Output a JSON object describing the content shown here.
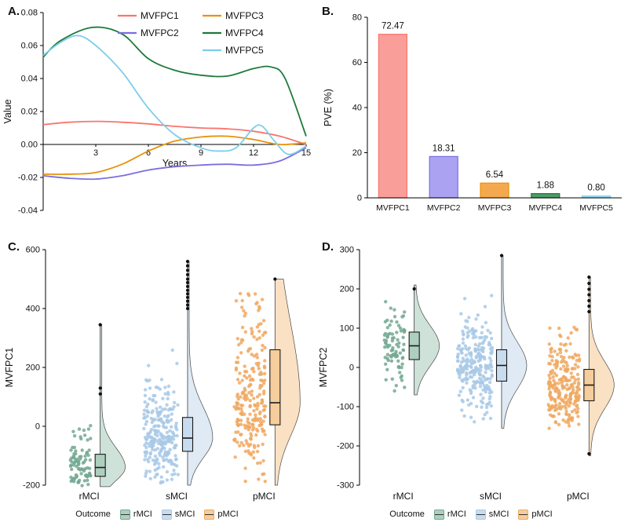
{
  "panels": {
    "a": "A.",
    "b": "B.",
    "c": "C.",
    "d": "D."
  },
  "chart_data": [
    {
      "id": "A",
      "type": "line",
      "xlabel": "Years",
      "ylabel": "Value",
      "xlim": [
        0,
        15
      ],
      "ylim": [
        -0.04,
        0.08
      ],
      "xticks": [
        3,
        6,
        9,
        12,
        15
      ],
      "yticks": [
        0.08,
        0.06,
        0.04,
        0.02,
        0.0,
        -0.02,
        -0.04
      ],
      "legend_position": "top-inside",
      "series": [
        {
          "name": "MVFPC1",
          "color": "#F8766D",
          "x": [
            0,
            1.5,
            3,
            4.5,
            6,
            7.5,
            9,
            10.5,
            12,
            13.5,
            15
          ],
          "y": [
            0.012,
            0.0135,
            0.014,
            0.0135,
            0.0125,
            0.011,
            0.01,
            0.0095,
            0.008,
            0.005,
            0.0
          ]
        },
        {
          "name": "MVFPC2",
          "color": "#7A6FE0",
          "x": [
            0,
            1.5,
            3,
            4.5,
            6,
            7.5,
            9,
            10.5,
            12,
            13.5,
            15
          ],
          "y": [
            -0.019,
            -0.0205,
            -0.021,
            -0.019,
            -0.0155,
            -0.0135,
            -0.0125,
            -0.012,
            -0.0125,
            -0.01,
            -0.002
          ]
        },
        {
          "name": "MVFPC3",
          "color": "#E8920C",
          "x": [
            0,
            1.5,
            3,
            4.5,
            6,
            7.5,
            9,
            10.5,
            12,
            13.5,
            15
          ],
          "y": [
            -0.018,
            -0.018,
            -0.017,
            -0.012,
            -0.004,
            0.002,
            0.0045,
            0.005,
            0.003,
            0.0,
            0.001
          ]
        },
        {
          "name": "MVFPC4",
          "color": "#1E7A3C",
          "x": [
            0,
            1,
            2.8,
            4.5,
            6,
            7.5,
            9,
            10.5,
            12,
            13,
            13.8,
            15
          ],
          "y": [
            0.053,
            0.063,
            0.071,
            0.067,
            0.052,
            0.045,
            0.042,
            0.0415,
            0.046,
            0.047,
            0.04,
            0.005
          ]
        },
        {
          "name": "MVFPC5",
          "color": "#7CCDEB",
          "x": [
            0,
            1,
            2,
            3,
            4.5,
            6,
            7.5,
            9,
            10,
            11,
            12,
            12.5,
            13.2,
            14,
            15
          ],
          "y": [
            0.054,
            0.062,
            0.066,
            0.06,
            0.044,
            0.022,
            0.006,
            -0.002,
            -0.004,
            -0.002,
            0.01,
            0.011,
            0.002,
            -0.006,
            -0.001
          ]
        }
      ]
    },
    {
      "id": "B",
      "type": "bar",
      "ylabel": "PVE (%)",
      "ylim": [
        0,
        80
      ],
      "yticks": [
        0,
        20,
        40,
        60,
        80
      ],
      "categories": [
        "MVFPC1",
        "MVFPC2",
        "MVFPC3",
        "MVFPC4",
        "MVFPC5"
      ],
      "values": [
        72.47,
        18.31,
        6.54,
        1.88,
        0.8
      ],
      "value_labels": [
        "72.47",
        "18.31",
        "6.54",
        "1.88",
        "0.80"
      ],
      "bar_fills": [
        "#FA9E99",
        "#ABA3F2",
        "#F5A94F",
        "#4E9B68",
        "#A6DCF2"
      ],
      "bar_strokes": [
        "#F8766D",
        "#7A6FE0",
        "#E8920C",
        "#1E7A3C",
        "#7CCDEB"
      ]
    },
    {
      "id": "C",
      "type": "raincloud",
      "ylabel": "MVFPC1",
      "ylim": [
        -200,
        600
      ],
      "yticks": [
        600,
        400,
        200,
        0,
        -200
      ],
      "categories": [
        "rMCI",
        "sMCI",
        "pMCI"
      ],
      "legend_title": "Outcome",
      "groups": [
        {
          "name": "rMCI",
          "point_color": "#74A892",
          "fill": "#AECFBF",
          "n": 85,
          "jitter_w": 26,
          "median": -140,
          "q1": -170,
          "q3": -95,
          "min": -205,
          "max": 150,
          "line_low": -205,
          "line_high": 345,
          "outliers": [
            345,
            130,
            110
          ]
        },
        {
          "name": "sMCI",
          "point_color": "#A8C9E6",
          "fill": "#C9DCEF",
          "n": 255,
          "jitter_w": 44,
          "median": -40,
          "q1": -85,
          "q3": 30,
          "min": -200,
          "max": 360,
          "line_low": -200,
          "line_high": 560,
          "outliers": [
            560,
            545,
            530,
            515,
            500,
            488,
            475,
            462,
            450,
            438,
            425,
            412,
            400
          ]
        },
        {
          "name": "pMCI",
          "point_color": "#F0A860",
          "fill": "#F6CD9C",
          "n": 235,
          "jitter_w": 40,
          "median": 80,
          "q1": 5,
          "q3": 260,
          "min": -200,
          "max": 470,
          "line_low": -200,
          "line_high": 500,
          "outliers": [
            500
          ]
        }
      ]
    },
    {
      "id": "D",
      "type": "raincloud",
      "ylabel": "MVFPC2",
      "ylim": [
        -300,
        300
      ],
      "yticks": [
        300,
        200,
        100,
        0,
        -100,
        -200,
        -300
      ],
      "categories": [
        "rMCI",
        "sMCI",
        "pMCI"
      ],
      "legend_title": "Outcome",
      "groups": [
        {
          "name": "rMCI",
          "point_color": "#74A892",
          "fill": "#AECFBF",
          "n": 85,
          "jitter_w": 26,
          "median": 55,
          "q1": 20,
          "q3": 90,
          "min": -65,
          "max": 205,
          "line_low": -70,
          "line_high": 210,
          "outliers": [
            200
          ]
        },
        {
          "name": "sMCI",
          "point_color": "#A8C9E6",
          "fill": "#C9DCEF",
          "n": 255,
          "jitter_w": 44,
          "median": 5,
          "q1": -35,
          "q3": 45,
          "min": -150,
          "max": 240,
          "line_low": -155,
          "line_high": 285,
          "outliers": [
            285
          ]
        },
        {
          "name": "pMCI",
          "point_color": "#F0A860",
          "fill": "#F6CD9C",
          "n": 235,
          "jitter_w": 40,
          "median": -45,
          "q1": -85,
          "q3": -5,
          "min": -170,
          "max": 135,
          "line_low": -225,
          "line_high": 230,
          "outliers": [
            230,
            214,
            199,
            185,
            170,
            156,
            142,
            -220
          ]
        }
      ]
    }
  ]
}
